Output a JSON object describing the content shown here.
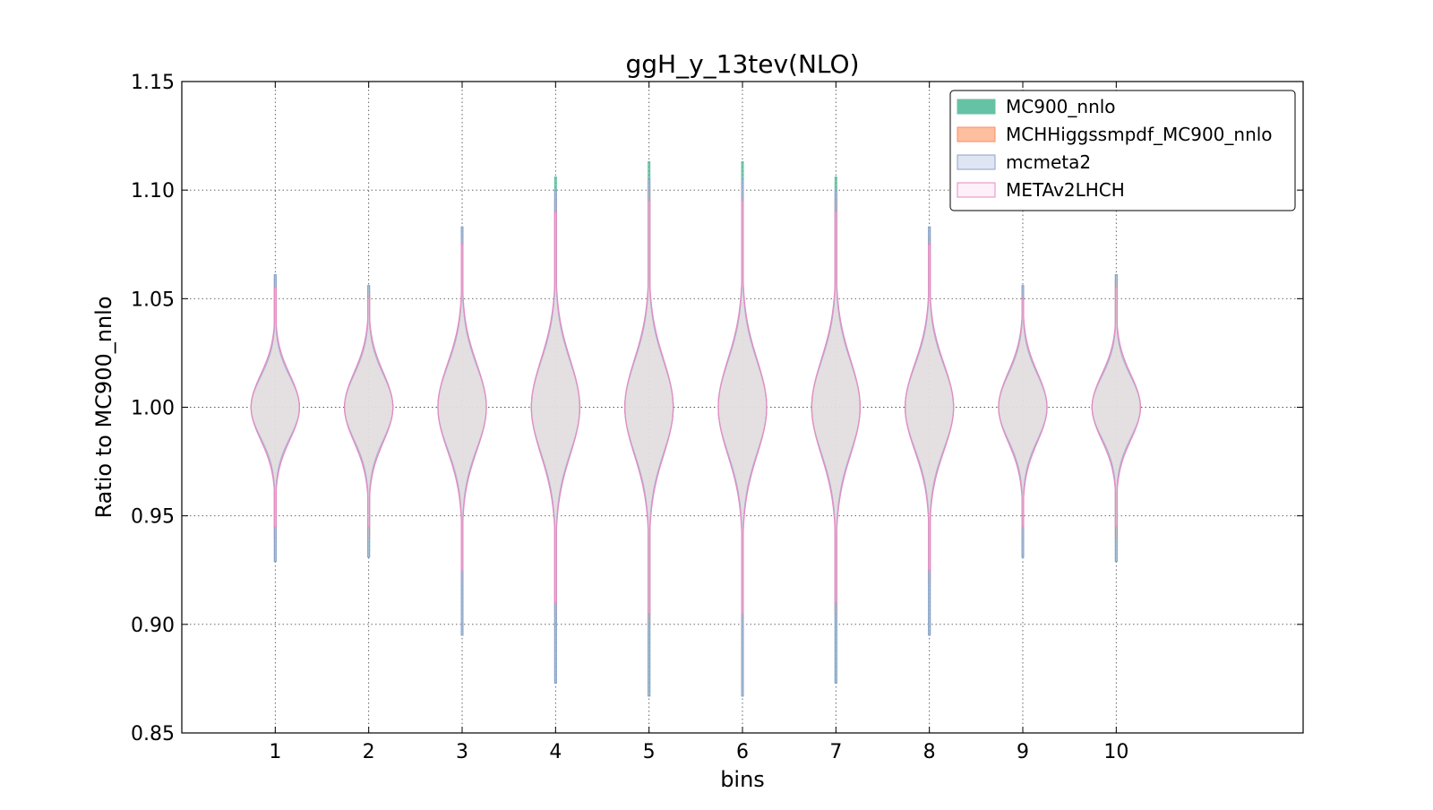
{
  "chart_data": {
    "type": "violin",
    "title": "ggH_y_13tev(NLO)",
    "xlabel": "bins",
    "ylabel": "Ratio to MC900_nnlo",
    "xlim": [
      0,
      12
    ],
    "ylim": [
      0.85,
      1.15
    ],
    "categories": [
      "1",
      "2",
      "3",
      "4",
      "5",
      "6",
      "7",
      "8",
      "9",
      "10"
    ],
    "positions": [
      1,
      2,
      3,
      4,
      5,
      6,
      7,
      8,
      9,
      10
    ],
    "yticks": [
      "0.85",
      "0.90",
      "0.95",
      "1.00",
      "1.05",
      "1.10",
      "1.15"
    ],
    "grid": true,
    "legend_position": "top-right",
    "series": [
      {
        "name": "MC900_nnlo",
        "color": "#66c2a5",
        "fill": "#66c2a5",
        "min": [
          0.929,
          0.931,
          0.895,
          0.873,
          0.867,
          0.867,
          0.873,
          0.895,
          0.931,
          0.929
        ],
        "max": [
          1.061,
          1.056,
          1.083,
          1.106,
          1.113,
          1.113,
          1.106,
          1.083,
          1.056,
          1.061
        ],
        "sigma": [
          0.014,
          0.015,
          0.019,
          0.021,
          0.021,
          0.021,
          0.021,
          0.019,
          0.015,
          0.014
        ]
      },
      {
        "name": "MCHHiggssmpdf_MC900_nnlo",
        "color": "#fc8d62",
        "fill": "#fdbf9f",
        "min": [
          0.94,
          0.94,
          0.92,
          0.905,
          0.9,
          0.9,
          0.905,
          0.92,
          0.94,
          0.94
        ],
        "max": [
          1.058,
          1.053,
          1.078,
          1.095,
          1.1,
          1.1,
          1.095,
          1.078,
          1.053,
          1.058
        ],
        "sigma": [
          0.014,
          0.015,
          0.019,
          0.021,
          0.021,
          0.021,
          0.021,
          0.019,
          0.015,
          0.014
        ]
      },
      {
        "name": "mcmeta2",
        "color": "#8da0cb",
        "fill": "#dfe5f3",
        "min": [
          0.929,
          0.931,
          0.895,
          0.873,
          0.867,
          0.867,
          0.873,
          0.895,
          0.931,
          0.929
        ],
        "max": [
          1.061,
          1.056,
          1.083,
          1.1,
          1.105,
          1.105,
          1.1,
          1.083,
          1.056,
          1.061
        ],
        "sigma": [
          0.014,
          0.015,
          0.019,
          0.021,
          0.021,
          0.021,
          0.021,
          0.019,
          0.015,
          0.014
        ]
      },
      {
        "name": "METAv2LHCH",
        "color": "#e78ac3",
        "fill": "#fdf0f8",
        "min": [
          0.945,
          0.945,
          0.925,
          0.91,
          0.905,
          0.905,
          0.91,
          0.925,
          0.945,
          0.945
        ],
        "max": [
          1.055,
          1.05,
          1.075,
          1.09,
          1.095,
          1.095,
          1.09,
          1.075,
          1.05,
          1.055
        ],
        "sigma": [
          0.015,
          0.016,
          0.02,
          0.022,
          0.022,
          0.022,
          0.022,
          0.02,
          0.016,
          0.015
        ]
      }
    ]
  }
}
